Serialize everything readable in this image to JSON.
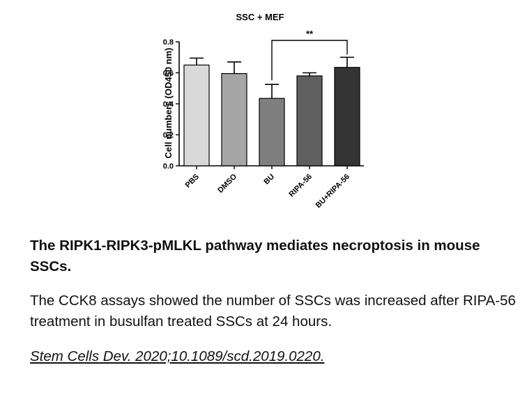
{
  "chart_data": {
    "type": "bar",
    "title": "SSC + MEF",
    "ylabel": "Cell numbers (OD450 nm)",
    "xlabel": "",
    "categories": [
      "PBS",
      "DMSO",
      "BU",
      "RIPA-56",
      "BU+RIPA-56"
    ],
    "values": [
      0.65,
      0.595,
      0.435,
      0.58,
      0.635
    ],
    "errors": [
      0.045,
      0.075,
      0.09,
      0.02,
      0.065
    ],
    "ylim": [
      0.0,
      0.8
    ],
    "yticks": [
      "0.0",
      "0.2",
      "0.4",
      "0.6",
      "0.8"
    ],
    "bar_colors": [
      "#d9d9d9",
      "#a6a6a6",
      "#7f7f7f",
      "#5f5f5f",
      "#343434"
    ],
    "grid": false,
    "annotations": [
      {
        "from": "BU",
        "to": "BU+RIPA-56",
        "label": "**"
      }
    ]
  },
  "caption": {
    "title": "The RIPK1-RIPK3-pMLKL pathway mediates necroptosis in mouse SSCs.",
    "body": "The CCK8 assays showed the number of SSCs was increased after RIPA-56 treatment in busulfan treated SSCs at 24 hours.",
    "citation": "Stem Cells Dev. 2020;10.1089/scd.2019.0220."
  }
}
